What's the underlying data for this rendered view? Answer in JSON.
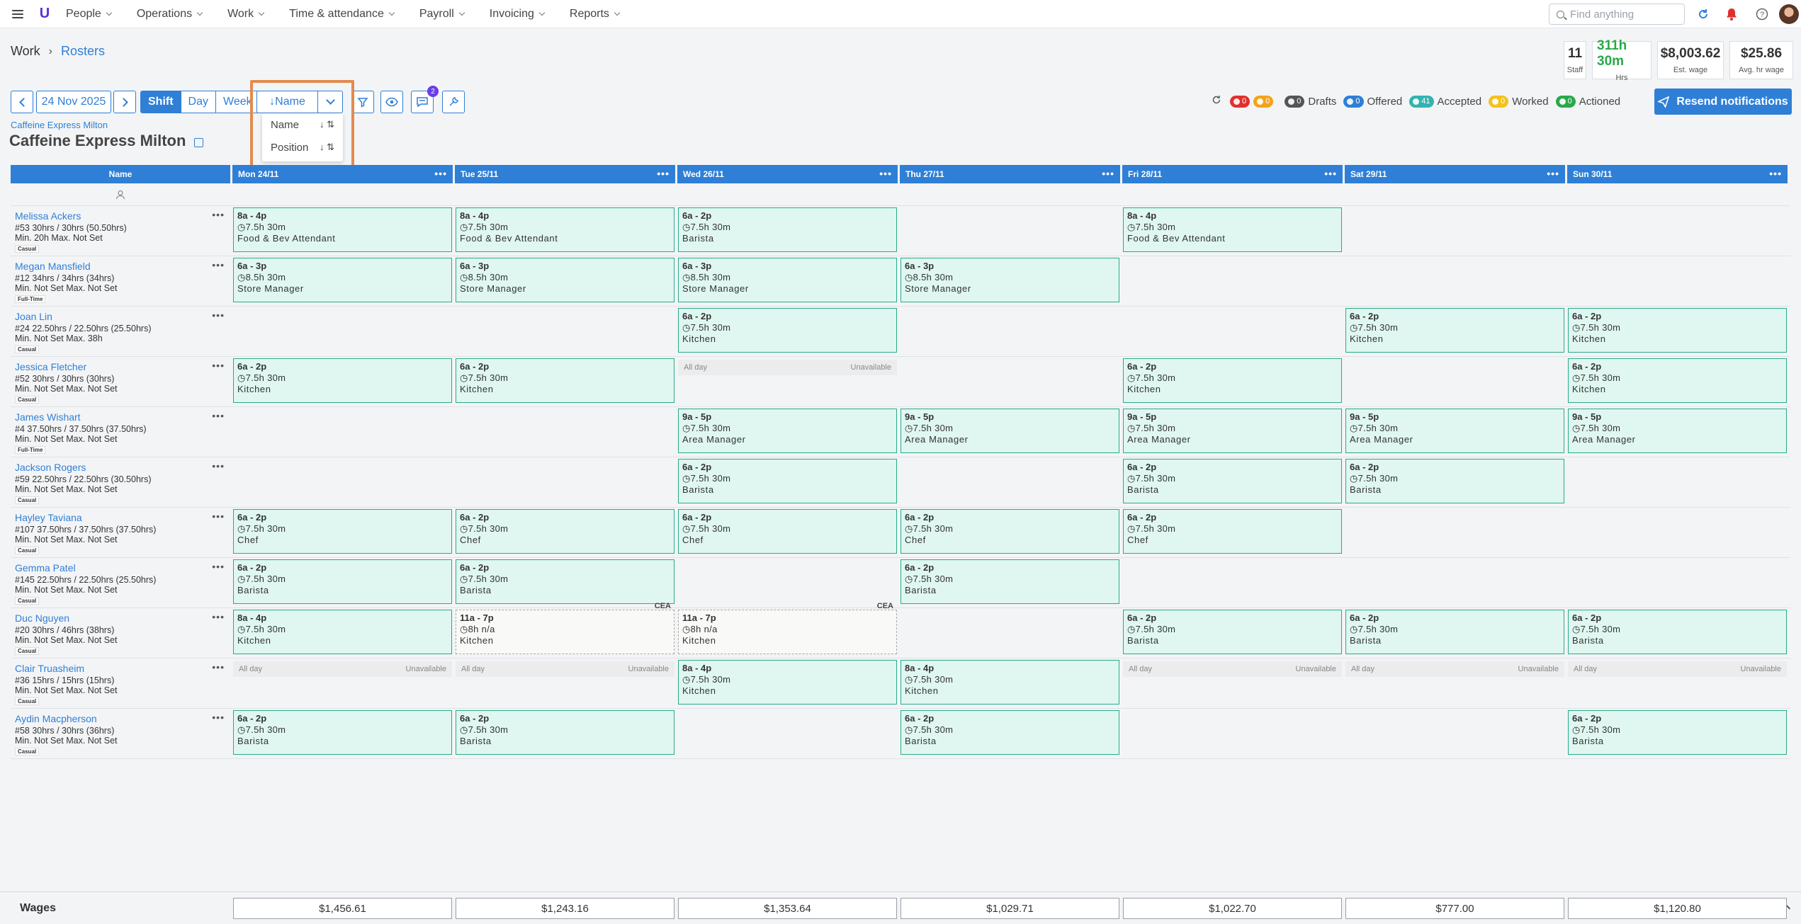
{
  "nav": {
    "items": [
      "People",
      "Operations",
      "Work",
      "Time & attendance",
      "Payroll",
      "Invoicing",
      "Reports"
    ],
    "search_placeholder": "Find anything",
    "logo": "U"
  },
  "breadcrumb": {
    "root": "Work",
    "current": "Rosters"
  },
  "stats": [
    {
      "value": "11",
      "label": "Staff"
    },
    {
      "value": "311h 30m",
      "label": "Hrs"
    },
    {
      "value": "$8,003.62",
      "label": "Est. wage"
    },
    {
      "value": "$25.86",
      "label": "Avg. hr wage"
    }
  ],
  "toolbar": {
    "date": "24 Nov 2025",
    "views": [
      "Shift",
      "Day",
      "Week"
    ],
    "active_view": "Shift",
    "sort_label": "↓Name",
    "message_count": "2"
  },
  "sort_menu": [
    {
      "label": "Name",
      "icon": "↓ ⇅"
    },
    {
      "label": "Position",
      "icon": "↓ ⇅"
    }
  ],
  "legend": {
    "red_count": "0",
    "warn_count": "0",
    "drafts": {
      "count": "0",
      "label": "Drafts"
    },
    "offered": {
      "count": "0",
      "label": "Offered"
    },
    "accepted": {
      "count": "41",
      "label": "Accepted"
    },
    "worked": {
      "count": "0",
      "label": "Worked"
    },
    "actioned": {
      "count": "0",
      "label": "Actioned"
    },
    "resend_label": "Resend notifications"
  },
  "location": {
    "small": "Caffeine Express Milton",
    "title": "Caffeine Express Milton"
  },
  "grid": {
    "name_header": "Name",
    "days": [
      "Mon 24/11",
      "Tue 25/11",
      "Wed 26/11",
      "Thu 27/11",
      "Fri 28/11",
      "Sat 29/11",
      "Sun 30/11"
    ],
    "unavailable_all": "All day",
    "unavailable_label": "Unavailable",
    "cea_label": "CEA",
    "staff": [
      {
        "name": "Melissa Ackers",
        "line1": "#53 30hrs / 30hrs (50.50hrs)",
        "line2": "Min. 20h  Max. Not Set",
        "type": "Casual",
        "shifts": [
          {
            "time": "8a - 4p",
            "detail": "7.5h 30m",
            "pos": "Food & Bev Attendant"
          },
          {
            "time": "8a - 4p",
            "detail": "7.5h 30m",
            "pos": "Food & Bev Attendant"
          },
          {
            "time": "6a - 2p",
            "detail": "7.5h 30m",
            "pos": "Barista"
          },
          null,
          {
            "time": "8a - 4p",
            "detail": "7.5h 30m",
            "pos": "Food & Bev Attendant"
          },
          null,
          null
        ]
      },
      {
        "name": "Megan Mansfield",
        "line1": "#12 34hrs / 34hrs (34hrs)",
        "line2": "Min. Not Set  Max. Not Set",
        "type": "Full-Time",
        "shifts": [
          {
            "time": "6a - 3p",
            "detail": "8.5h 30m",
            "pos": "Store Manager"
          },
          {
            "time": "6a - 3p",
            "detail": "8.5h 30m",
            "pos": "Store Manager"
          },
          {
            "time": "6a - 3p",
            "detail": "8.5h 30m",
            "pos": "Store Manager"
          },
          {
            "time": "6a - 3p",
            "detail": "8.5h 30m",
            "pos": "Store Manager"
          },
          null,
          null,
          null
        ]
      },
      {
        "name": "Joan Lin",
        "line1": "#24 22.50hrs / 22.50hrs (25.50hrs)",
        "line2": "Min. Not Set  Max. 38h",
        "type": "Casual",
        "shifts": [
          null,
          null,
          {
            "time": "6a - 2p",
            "detail": "7.5h 30m",
            "pos": "Kitchen"
          },
          null,
          null,
          {
            "time": "6a - 2p",
            "detail": "7.5h 30m",
            "pos": "Kitchen"
          },
          {
            "time": "6a - 2p",
            "detail": "7.5h 30m",
            "pos": "Kitchen"
          }
        ]
      },
      {
        "name": "Jessica Fletcher",
        "line1": "#52 30hrs / 30hrs (30hrs)",
        "line2": "Min. Not Set  Max. Not Set",
        "type": "Casual",
        "shifts": [
          {
            "time": "6a - 2p",
            "detail": "7.5h 30m",
            "pos": "Kitchen"
          },
          {
            "time": "6a - 2p",
            "detail": "7.5h 30m",
            "pos": "Kitchen"
          },
          "unavail",
          null,
          {
            "time": "6a - 2p",
            "detail": "7.5h 30m",
            "pos": "Kitchen"
          },
          null,
          {
            "time": "6a - 2p",
            "detail": "7.5h 30m",
            "pos": "Kitchen"
          }
        ]
      },
      {
        "name": "James Wishart",
        "line1": "#4 37.50hrs / 37.50hrs (37.50hrs)",
        "line2": "Min. Not Set  Max. Not Set",
        "type": "Full-Time",
        "shifts": [
          null,
          null,
          {
            "time": "9a - 5p",
            "detail": "7.5h 30m",
            "pos": "Area Manager"
          },
          {
            "time": "9a - 5p",
            "detail": "7.5h 30m",
            "pos": "Area Manager"
          },
          {
            "time": "9a - 5p",
            "detail": "7.5h 30m",
            "pos": "Area Manager"
          },
          {
            "time": "9a - 5p",
            "detail": "7.5h 30m",
            "pos": "Area Manager"
          },
          {
            "time": "9a - 5p",
            "detail": "7.5h 30m",
            "pos": "Area Manager"
          }
        ]
      },
      {
        "name": "Jackson Rogers",
        "line1": "#59 22.50hrs / 22.50hrs (30.50hrs)",
        "line2": "Min. Not Set  Max. Not Set",
        "type": "Casual",
        "shifts": [
          null,
          null,
          {
            "time": "6a - 2p",
            "detail": "7.5h 30m",
            "pos": "Barista"
          },
          null,
          {
            "time": "6a - 2p",
            "detail": "7.5h 30m",
            "pos": "Barista"
          },
          {
            "time": "6a - 2p",
            "detail": "7.5h 30m",
            "pos": "Barista"
          },
          null
        ]
      },
      {
        "name": "Hayley Taviana",
        "line1": "#107 37.50hrs / 37.50hrs (37.50hrs)",
        "line2": "Min. Not Set  Max. Not Set",
        "type": "Casual",
        "shifts": [
          {
            "time": "6a - 2p",
            "detail": "7.5h 30m",
            "pos": "Chef"
          },
          {
            "time": "6a - 2p",
            "detail": "7.5h 30m",
            "pos": "Chef"
          },
          {
            "time": "6a - 2p",
            "detail": "7.5h 30m",
            "pos": "Chef"
          },
          {
            "time": "6a - 2p",
            "detail": "7.5h 30m",
            "pos": "Chef"
          },
          {
            "time": "6a - 2p",
            "detail": "7.5h 30m",
            "pos": "Chef"
          },
          null,
          null
        ]
      },
      {
        "name": "Gemma Patel",
        "line1": "#145 22.50hrs / 22.50hrs (25.50hrs)",
        "line2": "Min. Not Set  Max. Not Set",
        "type": "Casual",
        "shifts": [
          {
            "time": "6a - 2p",
            "detail": "7.5h 30m",
            "pos": "Barista"
          },
          {
            "time": "6a - 2p",
            "detail": "7.5h 30m",
            "pos": "Barista"
          },
          null,
          {
            "time": "6a - 2p",
            "detail": "7.5h 30m",
            "pos": "Barista"
          },
          null,
          null,
          null
        ]
      },
      {
        "name": "Duc Nguyen",
        "line1": "#20 30hrs / 46hrs (38hrs)",
        "line2": "Min. Not Set  Max. Not Set",
        "type": "Casual",
        "shifts": [
          {
            "time": "8a - 4p",
            "detail": "7.5h 30m",
            "pos": "Kitchen"
          },
          {
            "time": "11a - 7p",
            "detail": "8h n/a",
            "pos": "Kitchen",
            "cea": true
          },
          {
            "time": "11a - 7p",
            "detail": "8h n/a",
            "pos": "Kitchen",
            "cea": true
          },
          null,
          {
            "time": "6a - 2p",
            "detail": "7.5h 30m",
            "pos": "Barista"
          },
          {
            "time": "6a - 2p",
            "detail": "7.5h 30m",
            "pos": "Barista"
          },
          {
            "time": "6a - 2p",
            "detail": "7.5h 30m",
            "pos": "Barista"
          }
        ]
      },
      {
        "name": "Clair Truasheim",
        "line1": "#36 15hrs / 15hrs (15hrs)",
        "line2": "Min. Not Set  Max. Not Set",
        "type": "Casual",
        "shifts": [
          "unavail",
          "unavail",
          {
            "time": "8a - 4p",
            "detail": "7.5h 30m",
            "pos": "Kitchen"
          },
          {
            "time": "8a - 4p",
            "detail": "7.5h 30m",
            "pos": "Kitchen"
          },
          "unavail",
          "unavail",
          "unavail"
        ]
      },
      {
        "name": "Aydin Macpherson",
        "line1": "#58 30hrs / 30hrs (36hrs)",
        "line2": "Min. Not Set  Max. Not Set",
        "type": "Casual",
        "shifts": [
          {
            "time": "6a - 2p",
            "detail": "7.5h 30m",
            "pos": "Barista"
          },
          {
            "time": "6a - 2p",
            "detail": "7.5h 30m",
            "pos": "Barista"
          },
          null,
          {
            "time": "6a - 2p",
            "detail": "7.5h 30m",
            "pos": "Barista"
          },
          null,
          null,
          {
            "time": "6a - 2p",
            "detail": "7.5h 30m",
            "pos": "Barista"
          }
        ]
      }
    ]
  },
  "wages": {
    "label": "Wages",
    "values": [
      "$1,456.61",
      "$1,243.16",
      "$1,353.64",
      "$1,029.71",
      "$1,022.70",
      "$777.00",
      "$1,120.80"
    ]
  },
  "colors": {
    "primary": "#2f7fd6",
    "shift_bg": "#dff7f0",
    "shift_border": "#2aaa8a",
    "highlight": "#e28b4e"
  }
}
